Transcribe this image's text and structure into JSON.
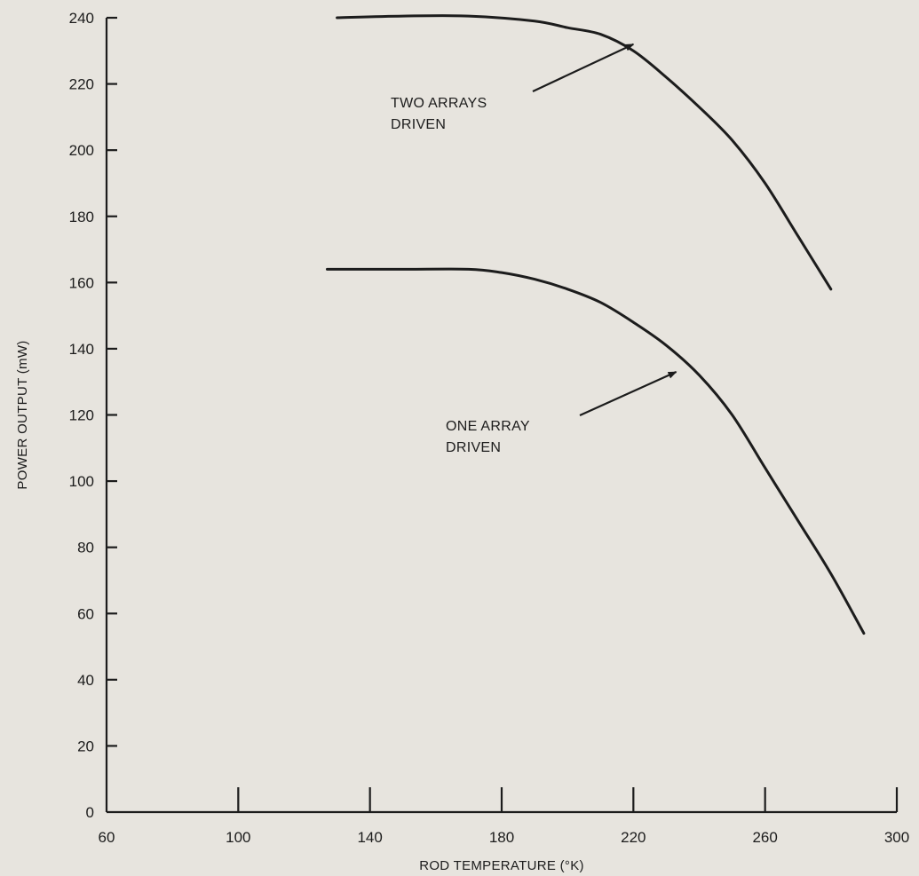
{
  "chart_data": {
    "type": "line",
    "title": "",
    "xlabel": "ROD TEMPERATURE (°K)",
    "ylabel": "POWER OUTPUT (mW)",
    "xlim": [
      60,
      300
    ],
    "ylim": [
      0,
      240
    ],
    "x_ticks": [
      "60",
      "100",
      "140",
      "180",
      "220",
      "260",
      "300"
    ],
    "y_ticks": [
      "0",
      "20",
      "40",
      "60",
      "80",
      "100",
      "120",
      "140",
      "160",
      "180",
      "200",
      "220",
      "240"
    ],
    "grid": false,
    "series": [
      {
        "x": [
          130,
          150,
          170,
          190,
          200,
          210,
          220,
          230,
          240,
          250,
          260,
          270,
          280
        ],
        "y": [
          240,
          240.5,
          240.5,
          239,
          237,
          235,
          230,
          222,
          213,
          203,
          190,
          174,
          158
        ]
      },
      {
        "x": [
          127,
          150,
          170,
          180,
          190,
          200,
          210,
          220,
          230,
          240,
          250,
          260,
          270,
          280,
          290
        ],
        "y": [
          164,
          164,
          164,
          163,
          161,
          158,
          154,
          148,
          141,
          132,
          120,
          104,
          88,
          72,
          54
        ]
      }
    ],
    "annotations": [
      {
        "lines": [
          "TWO ARRAYS",
          "DRIVEN"
        ],
        "arrow_to": {
          "x": 220,
          "y": 232
        }
      },
      {
        "lines": [
          "ONE ARRAY",
          "DRIVEN"
        ],
        "arrow_to": {
          "x": 233,
          "y": 133
        }
      }
    ],
    "colors": {
      "background": "#e7e4de",
      "ink": "#1c1c1c"
    }
  }
}
